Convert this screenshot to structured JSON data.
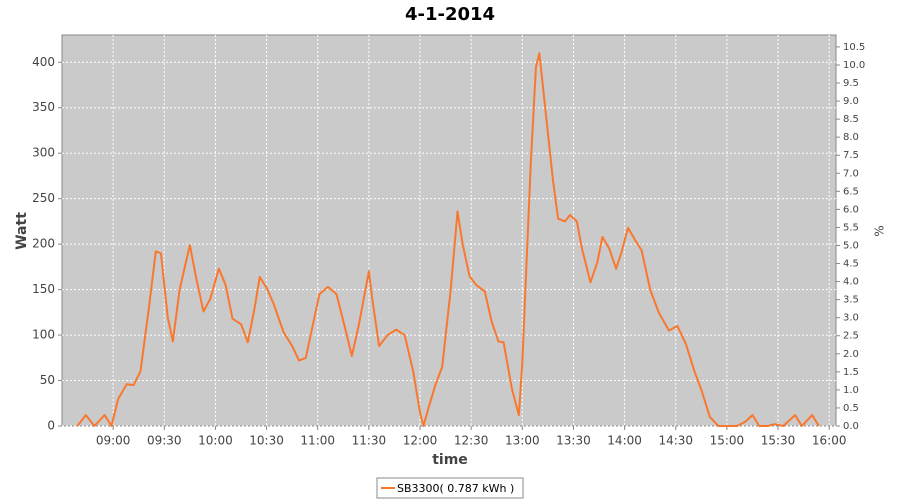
{
  "chart_data": {
    "type": "line",
    "title": "4-1-2014",
    "x_label": "time",
    "y_label": "Watt",
    "y2_label": "%",
    "x": [
      "08:39",
      "08:44",
      "08:49",
      "08:55",
      "08:59",
      "09:03",
      "09:08",
      "09:12",
      "09:16",
      "09:21",
      "09:25",
      "09:28",
      "09:32",
      "09:35",
      "09:39",
      "09:45",
      "09:49",
      "09:53",
      "09:57",
      "10:02",
      "10:06",
      "10:10",
      "10:15",
      "10:19",
      "10:23",
      "10:26",
      "10:30",
      "10:34",
      "10:40",
      "10:45",
      "10:49",
      "10:53",
      "10:57",
      "11:01",
      "11:06",
      "11:11",
      "11:16",
      "11:20",
      "11:24",
      "11:30",
      "11:32",
      "11:36",
      "11:41",
      "11:46",
      "11:51",
      "11:56",
      "12:00",
      "12:02",
      "12:05",
      "12:09",
      "12:13",
      "12:18",
      "12:22",
      "12:25",
      "12:29",
      "12:33",
      "12:38",
      "12:42",
      "12:46",
      "12:49",
      "12:54",
      "12:58",
      "13:00",
      "13:05",
      "13:08",
      "13:10",
      "13:14",
      "13:18",
      "13:21",
      "13:25",
      "13:28",
      "13:32",
      "13:35",
      "13:40",
      "13:44",
      "13:47",
      "13:51",
      "13:55",
      "13:58",
      "14:02",
      "14:06",
      "14:10",
      "14:15",
      "14:20",
      "14:26",
      "14:31",
      "14:36",
      "14:41",
      "14:45",
      "14:50",
      "14:55",
      "15:06",
      "15:11",
      "15:15",
      "15:19",
      "15:24",
      "15:28",
      "15:33",
      "15:40",
      "15:44",
      "15:50",
      "15:54"
    ],
    "series": [
      {
        "name": "SB3300( 0.787 kWh )",
        "color": "#f9782f",
        "values": [
          0,
          12,
          0,
          12,
          0,
          30,
          46,
          45,
          60,
          130,
          192,
          190,
          120,
          93,
          150,
          199,
          160,
          126,
          140,
          173,
          155,
          118,
          112,
          92,
          130,
          164,
          152,
          135,
          103,
          88,
          72,
          75,
          110,
          145,
          153,
          145,
          108,
          77,
          110,
          170,
          140,
          88,
          100,
          106,
          100,
          60,
          15,
          0,
          20,
          45,
          65,
          150,
          236,
          200,
          165,
          155,
          148,
          115,
          93,
          92,
          40,
          12,
          70,
          290,
          395,
          410,
          340,
          270,
          228,
          225,
          232,
          225,
          195,
          158,
          180,
          208,
          195,
          173,
          190,
          218,
          205,
          193,
          150,
          125,
          105,
          110,
          90,
          60,
          40,
          10,
          0,
          0,
          5,
          12,
          0,
          0,
          2,
          0,
          12,
          0,
          12,
          0
        ]
      }
    ],
    "xlim": [
      "08:30",
      "16:04"
    ],
    "xticks": [
      "09:00",
      "09:30",
      "10:00",
      "10:30",
      "11:00",
      "11:30",
      "12:00",
      "12:30",
      "13:00",
      "13:30",
      "14:00",
      "14:30",
      "15:00",
      "15:30",
      "16:00"
    ],
    "ylim": [
      0,
      430
    ],
    "yticks": [
      0,
      50,
      100,
      150,
      200,
      250,
      300,
      350,
      400
    ],
    "y2lim": [
      0,
      10.83
    ],
    "y2ticks": [
      {
        "value": 0,
        "label": "0.0"
      },
      0.5,
      {
        "value": 1,
        "label": "1.0"
      },
      1.5,
      {
        "value": 2,
        "label": "2.0"
      },
      2.5,
      {
        "value": 3,
        "label": "3.0"
      },
      3.5,
      {
        "value": 4,
        "label": "4.0"
      },
      4.5,
      {
        "value": 5,
        "label": "5.0"
      },
      5.5,
      {
        "value": 6,
        "label": "6.0"
      },
      6.5,
      {
        "value": 7,
        "label": "7.0"
      },
      7.5,
      {
        "value": 8,
        "label": "8.0"
      },
      8.5,
      {
        "value": 9,
        "label": "9.0"
      },
      9.5,
      {
        "value": 10,
        "label": "10.0"
      },
      10.5
    ],
    "grid": true,
    "legend": "bottom"
  }
}
